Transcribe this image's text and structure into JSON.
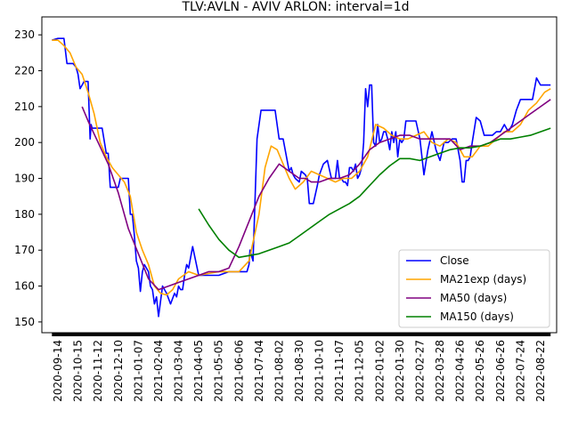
{
  "chart_data": {
    "type": "line",
    "title": "TLV:AVLN - AVIV ARLON: interval=1d",
    "xlabel": "",
    "ylabel": "",
    "ylim": [
      147,
      235
    ],
    "yticks": [
      150,
      160,
      170,
      180,
      190,
      200,
      210,
      220,
      230
    ],
    "x_tick_labels": [
      "2020-09-14",
      "2020-10-15",
      "2020-11-12",
      "2020-12-10",
      "2021-01-07",
      "2021-02-04",
      "2021-03-04",
      "2021-04-05",
      "2021-05-05",
      "2021-06-06",
      "2021-07-04",
      "2021-08-02",
      "2021-08-30",
      "2021-10-10",
      "2021-11-07",
      "2021-12-05",
      "2022-01-02",
      "2022-01-30",
      "2022-02-27",
      "2022-03-28",
      "2022-04-26",
      "2022-05-26",
      "2022-06-26",
      "2022-07-24",
      "2022-08-22"
    ],
    "grid": false,
    "legend_position": "lower right",
    "series": [
      {
        "name": "Close",
        "color": "#0000ff",
        "x": [
          -0.3,
          0,
          0.3,
          0.45,
          0.75,
          0.9,
          1.0,
          1.1,
          1.2,
          1.3,
          1.5,
          1.6,
          1.65,
          1.7,
          1.75,
          1.8,
          2.0,
          2.2,
          2.4,
          2.5,
          2.6,
          2.8,
          3.0,
          3.1,
          3.2,
          3.3,
          3.4,
          3.5,
          3.6,
          3.7,
          3.8,
          3.9,
          4.0,
          4.1,
          4.2,
          4.3,
          4.4,
          4.5,
          4.6,
          4.7,
          4.8,
          4.9,
          5.0,
          5.2,
          5.4,
          5.6,
          5.8,
          5.9,
          6.0,
          6.1,
          6.2,
          6.3,
          6.4,
          6.5,
          6.7,
          7.0,
          7.5,
          8.0,
          8.5,
          9.0,
          9.2,
          9.4,
          9.5,
          9.55,
          9.6,
          9.7,
          9.9,
          10.1,
          10.3,
          10.5,
          10.6,
          10.8,
          11.0,
          11.2,
          11.5,
          11.6,
          11.7,
          11.8,
          12.0,
          12.1,
          12.3,
          12.4,
          12.5,
          12.7,
          12.9,
          13.0,
          13.2,
          13.4,
          13.6,
          13.8,
          13.9,
          14.0,
          14.1,
          14.2,
          14.3,
          14.4,
          14.5,
          14.6,
          14.7,
          14.8,
          14.9,
          15.0,
          15.1,
          15.2,
          15.3,
          15.4,
          15.5,
          15.6,
          15.7,
          15.8,
          15.9,
          16.0,
          16.1,
          16.2,
          16.3,
          16.4,
          16.5,
          16.6,
          16.7,
          16.8,
          16.9,
          17.0,
          17.1,
          17.2,
          17.3,
          17.4,
          17.5,
          17.6,
          17.8,
          18.0,
          18.2,
          18.4,
          18.6,
          18.8,
          19.0,
          19.2,
          19.4,
          19.6,
          19.8,
          20.0,
          20.1,
          20.2,
          20.3,
          20.4,
          20.5,
          20.6,
          20.8,
          21.0,
          21.2,
          21.4,
          21.6,
          21.8,
          22.0,
          22.2,
          22.4,
          22.6,
          22.8,
          23.0,
          23.2,
          23.4,
          23.6,
          23.8,
          24.0,
          24.2,
          24.5
        ],
        "values": [
          228.5,
          229,
          229,
          222,
          222,
          221,
          219,
          215,
          216,
          217,
          217,
          201,
          205,
          204,
          204,
          204,
          204,
          204,
          197,
          197,
          187.5,
          187.5,
          187.5,
          190,
          190,
          190,
          190,
          190,
          180,
          180,
          174,
          167,
          165,
          158.5,
          164,
          166,
          165,
          164,
          160,
          159,
          155,
          157,
          151.5,
          160,
          158,
          155,
          158,
          157,
          160,
          159,
          159,
          163,
          166,
          165,
          171,
          163,
          163,
          163,
          164,
          164,
          164,
          164,
          166,
          170,
          169,
          167,
          201,
          209,
          209,
          209,
          209,
          209,
          201,
          201,
          192,
          193,
          191,
          190,
          189,
          192,
          191,
          190,
          183,
          183,
          188,
          191,
          194,
          195,
          190,
          190,
          195,
          190,
          190,
          189,
          189,
          188,
          193,
          193,
          192,
          194,
          190,
          191,
          193,
          200,
          215,
          210,
          216,
          216,
          200,
          199,
          205,
          200,
          201,
          203,
          203,
          201,
          198,
          203,
          200,
          203,
          196,
          201,
          200,
          201,
          206,
          206,
          206,
          206,
          206,
          201,
          191,
          198,
          203,
          198,
          195,
          200,
          200,
          201,
          201,
          195,
          189,
          189,
          195,
          195,
          196,
          200,
          207,
          206,
          202,
          202,
          202,
          203,
          203,
          205,
          203,
          205,
          209,
          212,
          212,
          212,
          212,
          218,
          216,
          216,
          216
        ],
        "note": "dense series"
      },
      {
        "name": "MA21exp (days)",
        "color": "#ffa500",
        "x": [
          -0.3,
          0,
          0.3,
          0.6,
          0.9,
          1.2,
          1.5,
          1.8,
          2.1,
          2.4,
          2.7,
          3.0,
          3.3,
          3.6,
          3.9,
          4.2,
          4.5,
          4.8,
          5.1,
          5.4,
          5.7,
          6.0,
          6.5,
          7.0,
          7.5,
          8.0,
          8.5,
          9.0,
          9.5,
          10.0,
          10.3,
          10.6,
          10.9,
          11.2,
          11.5,
          11.8,
          12.2,
          12.6,
          13.0,
          13.4,
          13.8,
          14.2,
          14.6,
          15.0,
          15.4,
          15.8,
          16.2,
          16.6,
          17.0,
          17.4,
          17.8,
          18.2,
          18.6,
          19.0,
          19.4,
          19.8,
          20.2,
          20.6,
          21.0,
          21.4,
          21.8,
          22.2,
          22.6,
          23.0,
          23.4,
          23.8,
          24.2,
          24.5
        ],
        "values": [
          228.5,
          228.5,
          227,
          225,
          221,
          219,
          214,
          208,
          200,
          196,
          193,
          191,
          189,
          185,
          175,
          170,
          166,
          160,
          158,
          157.5,
          159,
          162,
          164,
          163,
          163.5,
          164,
          164,
          164,
          167,
          180,
          193,
          199,
          198,
          194,
          190,
          187,
          189,
          192,
          191,
          190,
          189,
          190,
          190,
          192,
          196,
          205,
          204,
          202,
          201,
          201,
          202,
          203,
          200,
          199,
          201,
          200,
          196,
          196,
          199,
          199,
          201,
          203,
          203,
          205,
          209,
          211,
          214,
          215
        ],
        "note": "smoothed"
      },
      {
        "name": "MA50 (days)",
        "color": "#800080",
        "x": [
          1.2,
          1.5,
          2.0,
          2.5,
          3.0,
          3.5,
          4.0,
          4.5,
          5.0,
          5.5,
          6.0,
          6.5,
          7.0,
          7.5,
          8.0,
          8.5,
          9.0,
          9.5,
          10.0,
          10.5,
          11.0,
          11.5,
          12.0,
          12.3,
          12.6,
          13.0,
          13.5,
          14.0,
          14.5,
          15.0,
          15.5,
          16.0,
          16.5,
          17.0,
          17.5,
          18.0,
          18.5,
          19.0,
          19.5,
          20.0,
          20.5,
          21.0,
          21.5,
          22.0,
          22.5,
          23.0,
          23.5,
          24.0,
          24.5
        ],
        "values": [
          210,
          206,
          200,
          194,
          186,
          176,
          169,
          162,
          159,
          160,
          161,
          162,
          163,
          164,
          164,
          165,
          171,
          178,
          185,
          190,
          194,
          192,
          190,
          190,
          189,
          189,
          190,
          190,
          191,
          194,
          198,
          200,
          201,
          202,
          202,
          201,
          201,
          201,
          201,
          198,
          199,
          199,
          200,
          202,
          204,
          206,
          208,
          210,
          212
        ],
        "note": "smoothed"
      },
      {
        "name": "MA150 (days)",
        "color": "#008000",
        "x": [
          7.0,
          7.5,
          8.0,
          8.5,
          9.0,
          9.5,
          10.0,
          10.5,
          11.0,
          11.5,
          12.0,
          12.5,
          13.0,
          13.5,
          14.0,
          14.5,
          15.0,
          15.5,
          16.0,
          16.5,
          17.0,
          17.5,
          18.0,
          18.5,
          19.0,
          19.5,
          20.0,
          20.5,
          21.0,
          21.5,
          22.0,
          22.5,
          23.0,
          23.5,
          24.0,
          24.5
        ],
        "values": [
          181.5,
          177,
          173,
          170,
          168,
          168.5,
          169,
          170,
          171,
          172,
          174,
          176,
          178,
          180,
          181.5,
          183,
          185,
          188,
          191,
          193.5,
          195.5,
          195.5,
          195,
          196,
          197,
          198,
          198.5,
          198.5,
          199,
          200,
          201,
          201,
          201.5,
          202,
          203,
          204
        ],
        "note": "smoothed"
      }
    ]
  }
}
